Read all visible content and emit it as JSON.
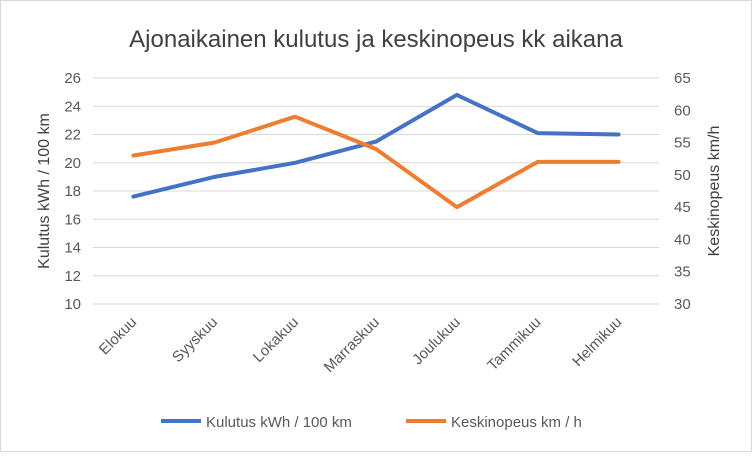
{
  "chart_data": {
    "type": "line",
    "title": "Ajonaikainen kulutus ja keskinopeus  kk aikana",
    "categories": [
      "Elokuu",
      "Syyskuu",
      "Lokakuu",
      "Marraskuu",
      "Joulukuu",
      "Tammikuu",
      "Helmikuu"
    ],
    "ylabel": "Kulutus kWh / 100 km",
    "y2label": "Keskinopeus km/h",
    "ylim": [
      10,
      26
    ],
    "yticks": [
      "10",
      "12",
      "14",
      "16",
      "18",
      "20",
      "22",
      "24",
      "26"
    ],
    "y2lim": [
      30,
      65
    ],
    "y2ticks": [
      "30",
      "35",
      "40",
      "45",
      "50",
      "55",
      "60",
      "65"
    ],
    "grid": true,
    "legend": "bottom",
    "series": [
      {
        "name": "Kulutus kWh / 100 km",
        "axis": "left",
        "color": "#4472c4",
        "values": [
          17.6,
          19.0,
          20.0,
          21.5,
          24.8,
          22.1,
          22.0
        ]
      },
      {
        "name": "Keskinopeus km / h",
        "axis": "right",
        "color": "#ed7d31",
        "values": [
          53.0,
          55.0,
          59.0,
          54.0,
          45.0,
          52.0,
          52.0
        ]
      }
    ]
  }
}
